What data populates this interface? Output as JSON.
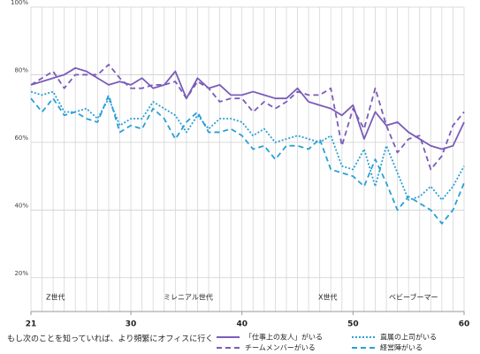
{
  "chart_data": {
    "type": "line",
    "x": [
      21,
      22,
      23,
      24,
      25,
      26,
      27,
      28,
      29,
      30,
      31,
      32,
      33,
      34,
      35,
      36,
      37,
      38,
      39,
      40,
      41,
      42,
      43,
      44,
      45,
      46,
      47,
      48,
      49,
      50,
      51,
      52,
      53,
      54,
      55,
      56,
      57,
      58,
      59,
      60
    ],
    "xlim": [
      21,
      60
    ],
    "xticks": [
      21,
      30,
      40,
      50,
      60
    ],
    "ylim": [
      10,
      100
    ],
    "yticks": [
      {
        "value": 20,
        "label": "20%"
      },
      {
        "value": 40,
        "label": "40%"
      },
      {
        "value": 60,
        "label": "60%"
      },
      {
        "value": 80,
        "label": "80%"
      },
      {
        "value": 100,
        "label": "100%"
      }
    ],
    "grid": true,
    "annotations": [
      "Z世代",
      "ミレニアル世代",
      "X世代",
      "ベビーブーマー"
    ],
    "legend_title": "もし次のことを知っていれば、より頻繁にオフィスに行く",
    "series": [
      {
        "name": "「仕事上の友人」がいる",
        "color": "#7b5cb8",
        "dash": "solid",
        "values": [
          77,
          78,
          79,
          80,
          82,
          81,
          79,
          77,
          78,
          77,
          79,
          76,
          77,
          81,
          73,
          79,
          76,
          77,
          74,
          74,
          75,
          74,
          73,
          73,
          76,
          72,
          71,
          70,
          68,
          71,
          61,
          69,
          65,
          66,
          63,
          61,
          59,
          58,
          59,
          66
        ]
      },
      {
        "name": "チームメンバーがいる",
        "color": "#7b5cb8",
        "dash": "dashed",
        "values": [
          77,
          79,
          81,
          76,
          80,
          80,
          80,
          83,
          79,
          76,
          76,
          77,
          77,
          78,
          73,
          78,
          76,
          72,
          73,
          73,
          69,
          72,
          70,
          72,
          75,
          74,
          74,
          76,
          59,
          70,
          64,
          76,
          65,
          57,
          61,
          62,
          52,
          56,
          65,
          69
        ]
      },
      {
        "name": "直属の上司がいる",
        "color": "#2a9fd6",
        "dash": "dotted",
        "values": [
          75,
          74,
          75,
          69,
          69,
          70,
          67,
          73,
          65,
          67,
          67,
          72,
          70,
          68,
          63,
          68,
          64,
          67,
          67,
          66,
          62,
          64,
          60,
          61,
          62,
          61,
          60,
          62,
          53,
          52,
          58,
          47,
          59,
          51,
          43,
          44,
          47,
          43,
          47,
          53
        ]
      },
      {
        "name": "経営陣がいる",
        "color": "#2a9fd6",
        "dash": "dashed",
        "values": [
          73,
          69,
          73,
          68,
          69,
          67,
          66,
          74,
          63,
          65,
          64,
          70,
          67,
          61,
          66,
          69,
          63,
          63,
          64,
          62,
          58,
          59,
          55,
          59,
          59,
          58,
          61,
          52,
          51,
          50,
          47,
          55,
          48,
          40,
          44,
          42,
          40,
          36,
          40,
          48
        ]
      }
    ]
  }
}
